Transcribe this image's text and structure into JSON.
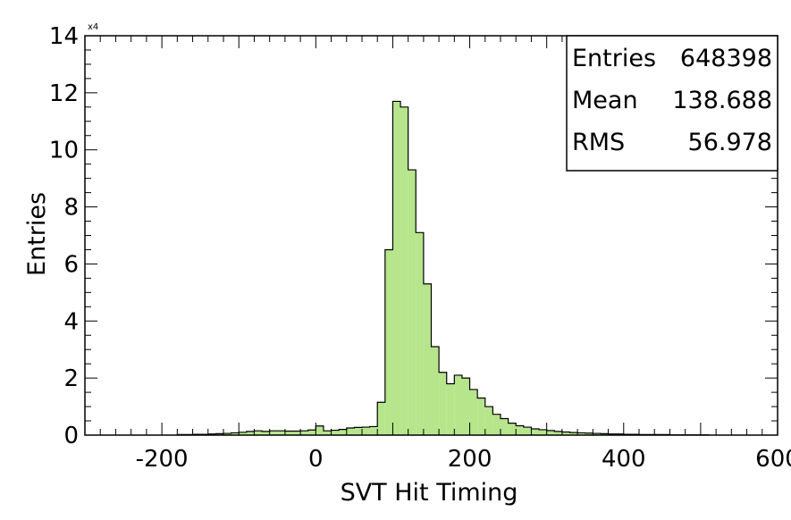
{
  "chart_data": {
    "type": "bar",
    "title": "",
    "xlabel": "SVT Hit Timing",
    "ylabel": "Entries",
    "y_exponent_label": "x4",
    "xlim": [
      -300,
      600
    ],
    "ylim": [
      0,
      14
    ],
    "x_tick_labels": [
      "-200",
      "0",
      "200",
      "400",
      "600"
    ],
    "x_tick_values": [
      -200,
      0,
      200,
      400,
      600
    ],
    "y_tick_labels": [
      "0",
      "2",
      "4",
      "6",
      "8",
      "10",
      "12",
      "14"
    ],
    "y_tick_values": [
      0,
      2,
      4,
      6,
      8,
      10,
      12,
      14
    ],
    "grid": false,
    "fill_color": "#b6e58c",
    "line_color": "#000000",
    "bin_width": 10,
    "bins_x_start": [
      -180,
      -170,
      -160,
      -150,
      -140,
      -130,
      -120,
      -110,
      -100,
      -90,
      -80,
      -70,
      -60,
      -50,
      -40,
      -30,
      -20,
      -10,
      0,
      10,
      20,
      30,
      40,
      50,
      60,
      70,
      80,
      90,
      100,
      110,
      120,
      130,
      140,
      150,
      160,
      170,
      180,
      190,
      200,
      210,
      220,
      230,
      240,
      250,
      260,
      270,
      280,
      290,
      300,
      310,
      320,
      330,
      340,
      350,
      360,
      370,
      380,
      390,
      400,
      410,
      420,
      430,
      440,
      450,
      460,
      470,
      480,
      490,
      500
    ],
    "values": [
      0.02,
      0.02,
      0.03,
      0.03,
      0.04,
      0.05,
      0.06,
      0.08,
      0.1,
      0.13,
      0.15,
      0.13,
      0.15,
      0.15,
      0.14,
      0.14,
      0.15,
      0.18,
      0.32,
      0.15,
      0.17,
      0.2,
      0.25,
      0.27,
      0.28,
      0.3,
      1.15,
      6.5,
      11.7,
      11.5,
      9.3,
      7.1,
      5.3,
      3.1,
      2.2,
      1.8,
      2.1,
      2.0,
      1.6,
      1.3,
      1.0,
      0.73,
      0.58,
      0.42,
      0.33,
      0.28,
      0.22,
      0.19,
      0.16,
      0.13,
      0.11,
      0.09,
      0.08,
      0.07,
      0.06,
      0.05,
      0.04,
      0.04,
      0.03,
      0.03,
      0.02,
      0.02,
      0.02,
      0.02,
      0.01,
      0.01,
      0.01,
      0.01,
      0.01
    ],
    "stats": {
      "entries_label": "Entries",
      "entries_value": "648398",
      "mean_label": "Mean",
      "mean_value": "138.688",
      "rms_label": "RMS",
      "rms_value": "56.978"
    }
  }
}
